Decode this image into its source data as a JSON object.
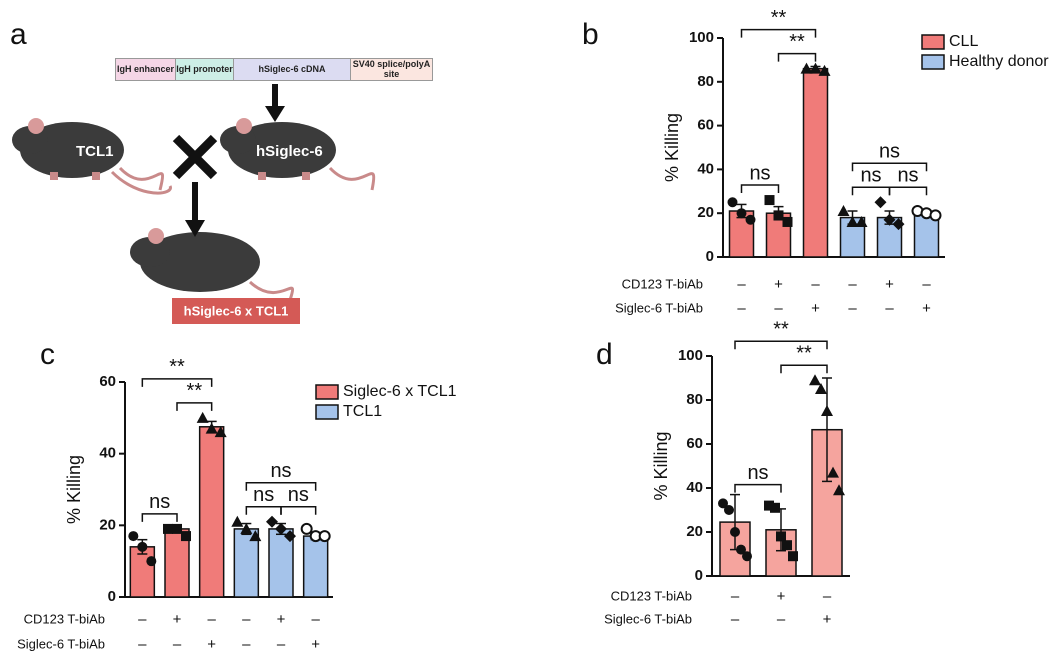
{
  "diagram": {
    "panel": "a",
    "construct": [
      "IgH enhancer",
      "IgH promoter",
      "hSiglec-6 cDNA",
      "SV40 splice/polyA site"
    ],
    "mice": [
      "TCL1",
      "hSiglec-6"
    ],
    "offspring": "hSiglec-6 x TCL1"
  },
  "chart_data": [
    {
      "type": "bar",
      "panel": "b",
      "y_label": "% Killing",
      "ylim": [
        0,
        100
      ],
      "yticks": [
        0,
        20,
        40,
        60,
        80,
        100
      ],
      "legend": "upper right",
      "markers": [
        "circle",
        "square",
        "triangle",
        "triangle",
        "diamond",
        "open-circle"
      ],
      "series": [
        {
          "name": "CLL",
          "color": "#f07b79",
          "values": [
            21,
            20,
            86,
            null,
            null,
            null
          ],
          "errors": [
            3,
            3,
            1,
            null,
            null,
            null
          ],
          "points": [
            [
              25,
              20,
              17
            ],
            [
              26,
              19,
              16
            ],
            [
              86,
              86,
              85
            ],
            null,
            null,
            null
          ]
        },
        {
          "name": "Healthy donor",
          "color": "#a5c3ea",
          "values": [
            null,
            null,
            null,
            18,
            18,
            20
          ],
          "errors": [
            null,
            null,
            null,
            3,
            3,
            1
          ],
          "points": [
            null,
            null,
            null,
            [
              21,
              16,
              16
            ],
            [
              25,
              17,
              15
            ],
            [
              21,
              20,
              19
            ]
          ]
        }
      ],
      "treatments": [
        {
          "name": "CD123 T-biAb",
          "signs": [
            "–",
            "+",
            "–",
            "–",
            "+",
            "–"
          ]
        },
        {
          "name": "Siglec-6 T-biAb",
          "signs": [
            "–",
            "–",
            "+",
            "–",
            "–",
            "+"
          ]
        }
      ],
      "significance": [
        {
          "bars": [
            0,
            2
          ],
          "label": "**"
        },
        {
          "bars": [
            1,
            2
          ],
          "label": "**"
        },
        {
          "bars": [
            0,
            1
          ],
          "label": "ns"
        },
        {
          "bars": [
            3,
            5
          ],
          "label": "ns"
        },
        {
          "bars": [
            3,
            4
          ],
          "label": "ns"
        },
        {
          "bars": [
            4,
            5
          ],
          "label": "ns"
        }
      ]
    },
    {
      "type": "bar",
      "panel": "c",
      "y_label": "% Killing",
      "ylim": [
        0,
        60
      ],
      "yticks": [
        0,
        20,
        40,
        60
      ],
      "legend": "upper right",
      "markers": [
        "circle",
        "square",
        "triangle",
        "triangle",
        "diamond",
        "open-circle"
      ],
      "series": [
        {
          "name": "Siglec-6 x TCL1",
          "color": "#f07b79",
          "values": [
            14,
            19,
            47.5,
            null,
            null,
            null
          ],
          "errors": [
            2,
            1,
            1.5,
            null,
            null,
            null
          ],
          "points": [
            [
              17,
              14,
              10
            ],
            [
              19,
              19,
              17
            ],
            [
              50,
              47,
              46
            ],
            null,
            null,
            null
          ]
        },
        {
          "name": "TCL1",
          "color": "#a5c3ea",
          "values": [
            null,
            null,
            null,
            19,
            19,
            17
          ],
          "errors": [
            null,
            null,
            null,
            1.5,
            1.5,
            1
          ],
          "points": [
            null,
            null,
            null,
            [
              21,
              19,
              17
            ],
            [
              21,
              19,
              17
            ],
            [
              19,
              17,
              17
            ]
          ]
        }
      ],
      "treatments": [
        {
          "name": "CD123 T-biAb",
          "signs": [
            "–",
            "+",
            "–",
            "–",
            "+",
            "–"
          ]
        },
        {
          "name": "Siglec-6 T-biAb",
          "signs": [
            "–",
            "–",
            "+",
            "–",
            "–",
            "+"
          ]
        }
      ],
      "significance": [
        {
          "bars": [
            0,
            2
          ],
          "label": "**"
        },
        {
          "bars": [
            1,
            2
          ],
          "label": "**"
        },
        {
          "bars": [
            0,
            1
          ],
          "label": "ns"
        },
        {
          "bars": [
            3,
            5
          ],
          "label": "ns"
        },
        {
          "bars": [
            3,
            4
          ],
          "label": "ns"
        },
        {
          "bars": [
            4,
            5
          ],
          "label": "ns"
        }
      ]
    },
    {
      "type": "bar",
      "panel": "d",
      "y_label": "% Killing",
      "ylim": [
        0,
        100
      ],
      "yticks": [
        0,
        20,
        40,
        60,
        80,
        100
      ],
      "markers": [
        "circle",
        "square",
        "triangle"
      ],
      "series": [
        {
          "color": "#f5a49e",
          "values": [
            24.5,
            21,
            66.5
          ],
          "errors": [
            12.5,
            9.5,
            23.5
          ],
          "points": [
            [
              33,
              30,
              20,
              12,
              9
            ],
            [
              32,
              31,
              18,
              14,
              9
            ],
            [
              89,
              85,
              75,
              47,
              39
            ]
          ]
        }
      ],
      "treatments": [
        {
          "name": "CD123 T-biAb",
          "signs": [
            "–",
            "+",
            "–"
          ]
        },
        {
          "name": "Siglec-6 T-biAb",
          "signs": [
            "–",
            "–",
            "+"
          ]
        }
      ],
      "significance": [
        {
          "bars": [
            0,
            2
          ],
          "label": "**"
        },
        {
          "bars": [
            1,
            2
          ],
          "label": "**"
        },
        {
          "bars": [
            0,
            1
          ],
          "label": "ns"
        }
      ]
    }
  ]
}
